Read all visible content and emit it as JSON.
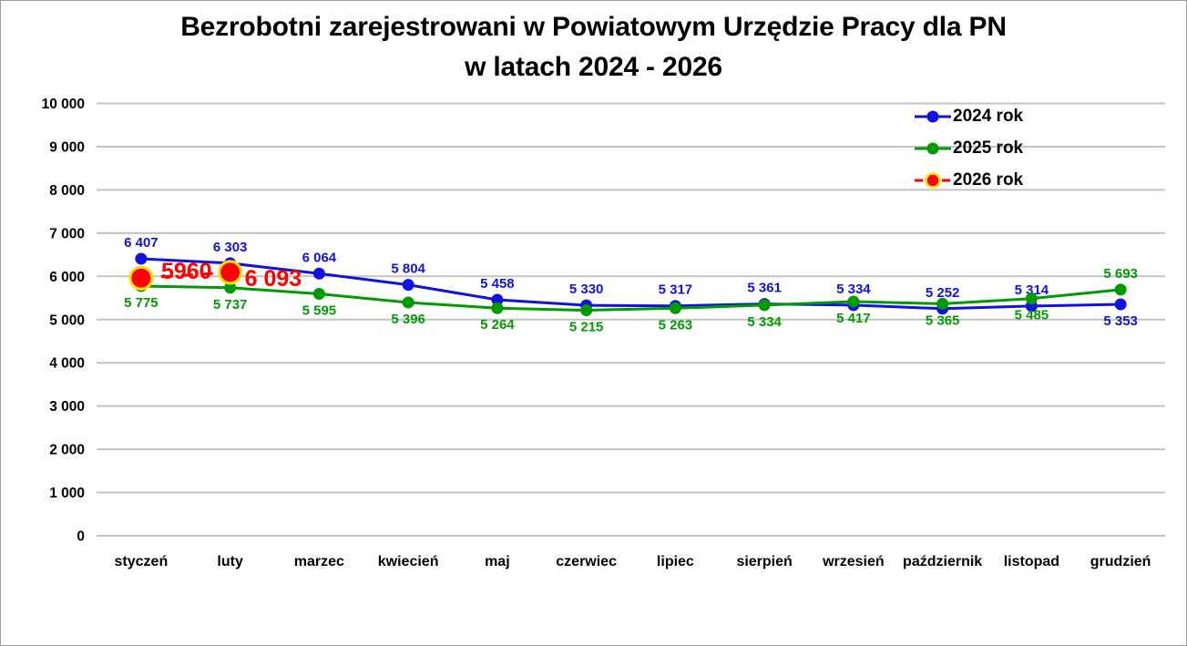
{
  "title": {
    "line1": "Bezrobotni zarejestrowani w Powiatowym Urzędzie Pracy dla PN",
    "line2": "w latach 2024 - 2026"
  },
  "chart_data": {
    "type": "line",
    "title": "Bezrobotni zarejestrowani w Powiatowym Urzędzie Pracy dla PN w latach 2024 - 2026",
    "categories": [
      "styczeń",
      "luty",
      "marzec",
      "kwiecień",
      "maj",
      "czerwiec",
      "lipiec",
      "sierpień",
      "wrzesień",
      "październik",
      "listopad",
      "grudzień"
    ],
    "series": [
      {
        "name": "2024 rok",
        "color": "#1212df",
        "line_style": "solid",
        "marker": "circle",
        "values": [
          6407,
          6303,
          6064,
          5804,
          5458,
          5330,
          5317,
          5361,
          5334,
          5252,
          5314,
          5353
        ],
        "labels": [
          "6 407",
          "6 303",
          "6 064",
          "5 804",
          "5 458",
          "5 330",
          "5 317",
          "5 361",
          "5 334",
          "5 252",
          "5 314",
          "5 353"
        ],
        "label_side": [
          "above",
          "above",
          "above",
          "above",
          "above",
          "above",
          "above",
          "above",
          "above",
          "above",
          "above",
          "below"
        ]
      },
      {
        "name": "2025 rok",
        "color": "#009b00",
        "line_style": "solid",
        "marker": "circle",
        "values": [
          5775,
          5737,
          5595,
          5396,
          5264,
          5215,
          5263,
          5334,
          5417,
          5365,
          5485,
          5693
        ],
        "labels": [
          "5 775",
          "5 737",
          "5 595",
          "5 396",
          "5 264",
          "5 215",
          "5 263",
          "5 334",
          "5 417",
          "5 365",
          "5 485",
          "5 693"
        ],
        "label_side": [
          "below",
          "below",
          "below",
          "below",
          "below",
          "below",
          "below",
          "below",
          "below",
          "below",
          "below",
          "above"
        ]
      },
      {
        "name": "2026 rok",
        "color": "#ff0000",
        "marker_ring_color": "#ffe100",
        "line_style": "dashed",
        "marker": "circle-large",
        "values": [
          5960,
          6093,
          null,
          null,
          null,
          null,
          null,
          null,
          null,
          null,
          null,
          null
        ],
        "labels": [
          "5960",
          "6 093"
        ],
        "label_side": [
          "custom-mid",
          "custom-right"
        ]
      }
    ],
    "ylim": [
      0,
      10000
    ],
    "ytick_step": 1000,
    "ytick_labels": [
      "0",
      "1 000",
      "2 000",
      "3 000",
      "4 000",
      "5 000",
      "6 000",
      "7 000",
      "8 000",
      "9 000",
      "10 000"
    ],
    "grid": true,
    "gridline_color": "#c3c3c3",
    "axis_text_color": "#000000",
    "legend_position": "top-right"
  }
}
